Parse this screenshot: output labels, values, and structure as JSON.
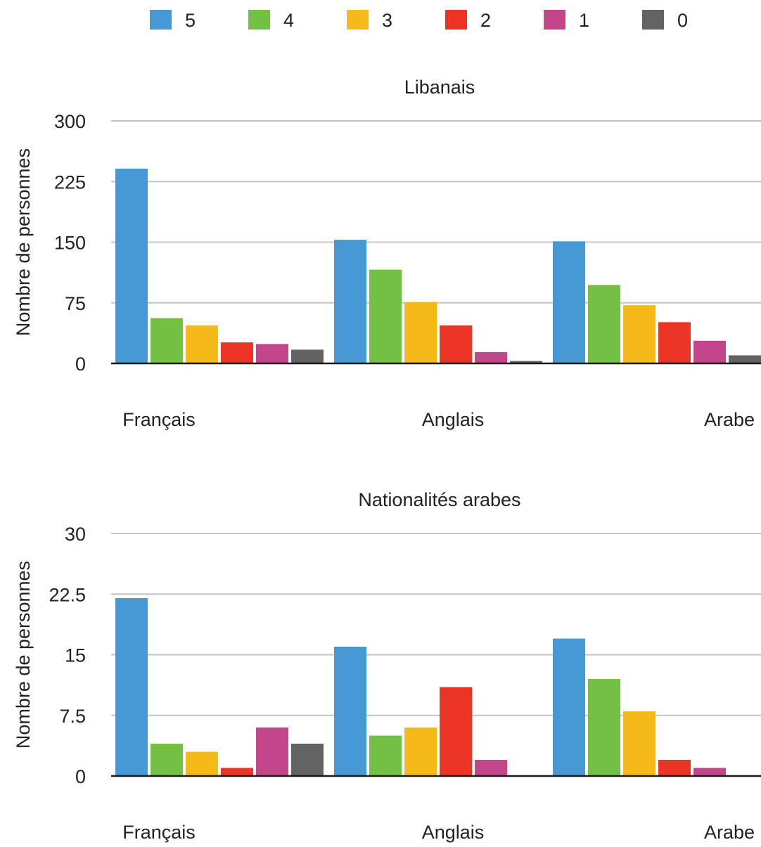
{
  "legend": {
    "position": "top-center",
    "items": [
      {
        "label": "5",
        "color": "#4699D4"
      },
      {
        "label": "4",
        "color": "#74C044"
      },
      {
        "label": "3",
        "color": "#F5B919"
      },
      {
        "label": "2",
        "color": "#EC3426"
      },
      {
        "label": "1",
        "color": "#C3468A"
      },
      {
        "label": "0",
        "color": "#636363"
      }
    ]
  },
  "chart_data": [
    {
      "type": "bar",
      "title": "Libanais",
      "ylabel": "Nombre de personnes",
      "xlabel": "",
      "categories": [
        "Français",
        "Anglais",
        "Arabe"
      ],
      "ylim": [
        0,
        300
      ],
      "yticks": [
        "0",
        "75",
        "150",
        "225",
        "300"
      ],
      "grid": true,
      "series": [
        {
          "name": "5",
          "values": [
            241,
            153,
            151
          ]
        },
        {
          "name": "4",
          "values": [
            56,
            116,
            97
          ]
        },
        {
          "name": "3",
          "values": [
            47,
            76,
            72
          ]
        },
        {
          "name": "2",
          "values": [
            26,
            47,
            51
          ]
        },
        {
          "name": "1",
          "values": [
            24,
            14,
            28
          ]
        },
        {
          "name": "0",
          "values": [
            17,
            3,
            10
          ]
        }
      ]
    },
    {
      "type": "bar",
      "title": "Nationalités arabes",
      "ylabel": "Nombre de personnes",
      "xlabel": "",
      "categories": [
        "Français",
        "Anglais",
        "Arabe"
      ],
      "ylim": [
        0,
        30
      ],
      "yticks": [
        "0",
        "7.5",
        "15",
        "22.5",
        "30"
      ],
      "grid": true,
      "series": [
        {
          "name": "5",
          "values": [
            22,
            16,
            17
          ]
        },
        {
          "name": "4",
          "values": [
            4,
            5,
            12
          ]
        },
        {
          "name": "3",
          "values": [
            3,
            6,
            8
          ]
        },
        {
          "name": "2",
          "values": [
            1,
            11,
            2
          ]
        },
        {
          "name": "1",
          "values": [
            6,
            2,
            1
          ]
        },
        {
          "name": "0",
          "values": [
            4,
            0,
            0
          ]
        }
      ]
    }
  ]
}
